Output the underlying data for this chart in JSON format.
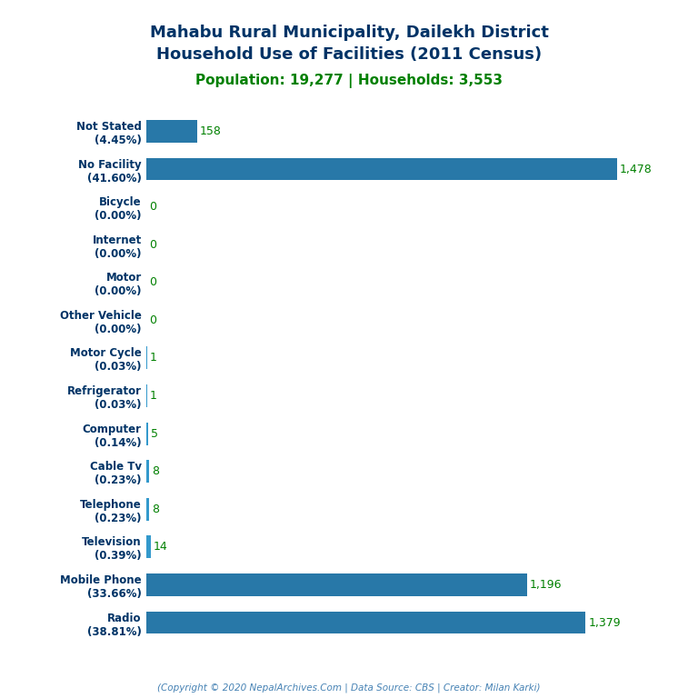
{
  "title_line1": "Mahabu Rural Municipality, Dailekh District",
  "title_line2": "Household Use of Facilities (2011 Census)",
  "subtitle": "Population: 19,277 | Households: 3,553",
  "footer": "(Copyright © 2020 NepalArchives.Com | Data Source: CBS | Creator: Milan Karki)",
  "categories": [
    "Not Stated\n(4.45%)",
    "No Facility\n(41.60%)",
    "Bicycle\n(0.00%)",
    "Internet\n(0.00%)",
    "Motor\n(0.00%)",
    "Other Vehicle\n(0.00%)",
    "Motor Cycle\n(0.03%)",
    "Refrigerator\n(0.03%)",
    "Computer\n(0.14%)",
    "Cable Tv\n(0.23%)",
    "Telephone\n(0.23%)",
    "Television\n(0.39%)",
    "Mobile Phone\n(33.66%)",
    "Radio\n(38.81%)"
  ],
  "values": [
    158,
    1478,
    0,
    0,
    0,
    0,
    1,
    1,
    5,
    8,
    8,
    14,
    1196,
    1379
  ],
  "bar_color_large": "#2878a8",
  "bar_color_small": "#3399cc",
  "title_color": "#003366",
  "subtitle_color": "#008000",
  "label_color": "#003366",
  "value_color": "#008000",
  "footer_color": "#4682b4",
  "background_color": "#ffffff",
  "xlim": [
    0,
    1600
  ],
  "bar_height": 0.6
}
